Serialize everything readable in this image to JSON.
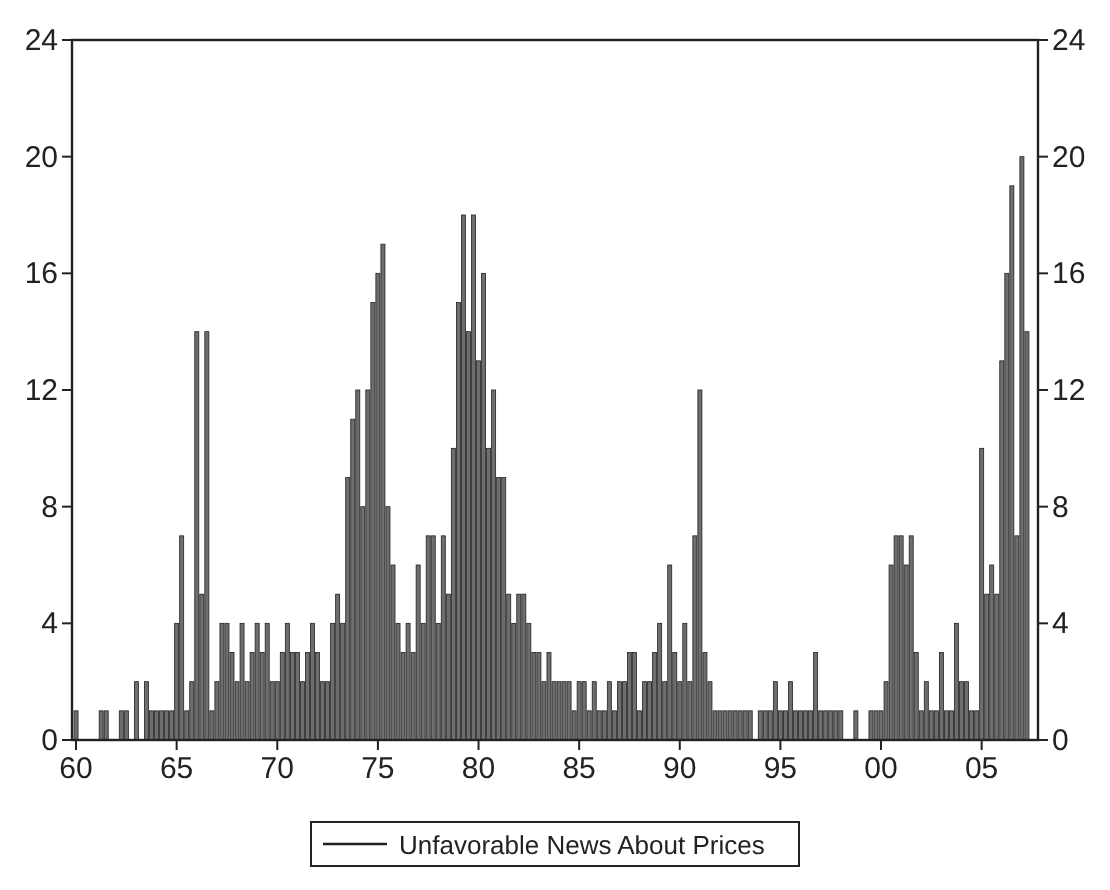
{
  "chart_data": {
    "type": "bar",
    "x": [
      1960,
      1960.25,
      1960.5,
      1960.75,
      1961,
      1961.25,
      1961.5,
      1961.75,
      1962,
      1962.25,
      1962.5,
      1962.75,
      1963,
      1963.25,
      1963.5,
      1963.75,
      1964,
      1964.25,
      1964.5,
      1964.75,
      1965,
      1965.25,
      1965.5,
      1965.75,
      1966,
      1966.25,
      1966.5,
      1966.75,
      1967,
      1967.25,
      1967.5,
      1967.75,
      1968,
      1968.25,
      1968.5,
      1968.75,
      1969,
      1969.25,
      1969.5,
      1969.75,
      1970,
      1970.25,
      1970.5,
      1970.75,
      1971,
      1971.25,
      1971.5,
      1971.75,
      1972,
      1972.25,
      1972.5,
      1972.75,
      1973,
      1973.25,
      1973.5,
      1973.75,
      1974,
      1974.25,
      1974.5,
      1974.75,
      1975,
      1975.25,
      1975.5,
      1975.75,
      1976,
      1976.25,
      1976.5,
      1976.75,
      1977,
      1977.25,
      1977.5,
      1977.75,
      1978,
      1978.25,
      1978.5,
      1978.75,
      1979,
      1979.25,
      1979.5,
      1979.75,
      1980,
      1980.25,
      1980.5,
      1980.75,
      1981,
      1981.25,
      1981.5,
      1981.75,
      1982,
      1982.25,
      1982.5,
      1982.75,
      1983,
      1983.25,
      1983.5,
      1983.75,
      1984,
      1984.25,
      1984.5,
      1984.75,
      1985,
      1985.25,
      1985.5,
      1985.75,
      1986,
      1986.25,
      1986.5,
      1986.75,
      1987,
      1987.25,
      1987.5,
      1987.75,
      1988,
      1988.25,
      1988.5,
      1988.75,
      1989,
      1989.25,
      1989.5,
      1989.75,
      1990,
      1990.25,
      1990.5,
      1990.75,
      1991,
      1991.25,
      1991.5,
      1991.75,
      1992,
      1992.25,
      1992.5,
      1992.75,
      1993,
      1993.25,
      1993.5,
      1993.75,
      1994,
      1994.25,
      1994.5,
      1994.75,
      1995,
      1995.25,
      1995.5,
      1995.75,
      1996,
      1996.25,
      1996.5,
      1996.75,
      1997,
      1997.25,
      1997.5,
      1997.75,
      1998,
      1998.25,
      1998.5,
      1998.75,
      1999,
      1999.25,
      1999.5,
      1999.75,
      2000,
      2000.25,
      2000.5,
      2000.75,
      2001,
      2001.25,
      2001.5,
      2001.75,
      2002,
      2002.25,
      2002.5,
      2002.75,
      2003,
      2003.25,
      2003.5,
      2003.75,
      2004,
      2004.25,
      2004.5,
      2004.75,
      2005,
      2005.25,
      2005.5,
      2005.75,
      2006,
      2006.25,
      2006.5,
      2006.75,
      2007,
      2007.25
    ],
    "series": [
      {
        "name": "Unfavorable News About Prices",
        "color": "#6e6e6e",
        "values": [
          1,
          0,
          0,
          0,
          0,
          1,
          1,
          0,
          0,
          1,
          1,
          0,
          2,
          0,
          2,
          1,
          1,
          1,
          1,
          1,
          4,
          7,
          1,
          2,
          14,
          5,
          14,
          1,
          2,
          4,
          4,
          3,
          2,
          4,
          2,
          3,
          4,
          3,
          4,
          2,
          2,
          3,
          4,
          3,
          3,
          2,
          3,
          4,
          3,
          2,
          2,
          4,
          5,
          4,
          9,
          11,
          12,
          8,
          12,
          15,
          16,
          17,
          8,
          6,
          4,
          3,
          4,
          3,
          6,
          4,
          7,
          7,
          4,
          7,
          5,
          10,
          15,
          18,
          14,
          18,
          13,
          16,
          10,
          12,
          9,
          9,
          5,
          4,
          5,
          5,
          4,
          3,
          3,
          2,
          3,
          2,
          2,
          2,
          2,
          1,
          2,
          2,
          1,
          2,
          1,
          1,
          2,
          1,
          2,
          2,
          3,
          3,
          1,
          2,
          2,
          3,
          4,
          2,
          6,
          3,
          2,
          4,
          2,
          7,
          12,
          3,
          2,
          1,
          1,
          1,
          1,
          1,
          1,
          1,
          1,
          0,
          1,
          1,
          1,
          2,
          1,
          1,
          2,
          1,
          1,
          1,
          1,
          3,
          1,
          1,
          1,
          1,
          1,
          0,
          0,
          1,
          0,
          0,
          1,
          1,
          1,
          2,
          6,
          7,
          7,
          6,
          7,
          3,
          1,
          2,
          1,
          1,
          3,
          1,
          1,
          4,
          2,
          2,
          1,
          1,
          10,
          5,
          6,
          5,
          13,
          16,
          19,
          7,
          20,
          14
        ]
      }
    ],
    "xlim": [
      1959.8,
      2007.8
    ],
    "xticks": [
      {
        "value": 1960,
        "label": "60"
      },
      {
        "value": 1965,
        "label": "65"
      },
      {
        "value": 1970,
        "label": "70"
      },
      {
        "value": 1975,
        "label": "75"
      },
      {
        "value": 1980,
        "label": "80"
      },
      {
        "value": 1985,
        "label": "85"
      },
      {
        "value": 1990,
        "label": "90"
      },
      {
        "value": 1995,
        "label": "95"
      },
      {
        "value": 2000,
        "label": "00"
      },
      {
        "value": 2005,
        "label": "05"
      }
    ],
    "ylim": [
      0,
      24
    ],
    "yticks": [
      0,
      4,
      8,
      12,
      16,
      20,
      24
    ],
    "y2lim": [
      0,
      24
    ],
    "y2ticks": [
      0,
      4,
      8,
      12,
      16,
      20,
      24
    ],
    "legend": "bottom",
    "grid": false
  }
}
